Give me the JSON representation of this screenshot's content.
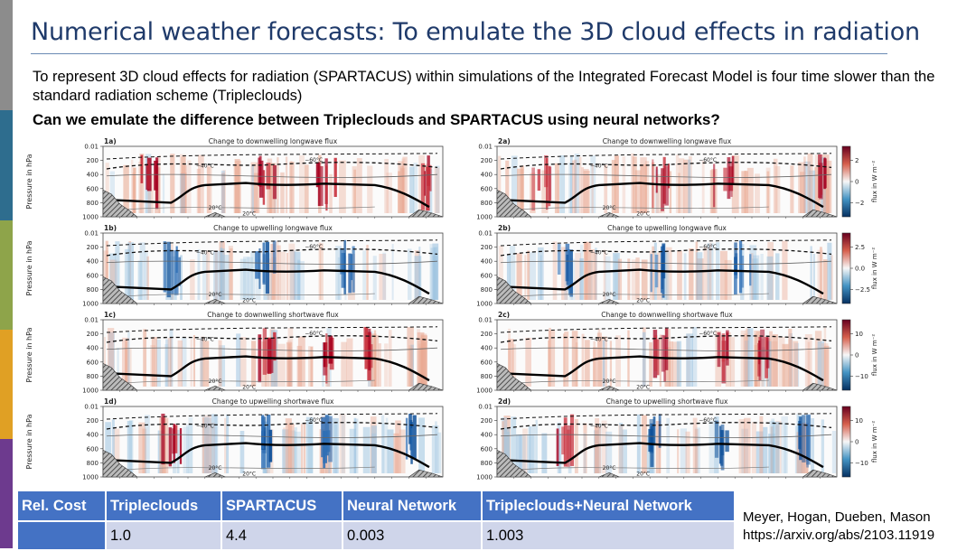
{
  "slide": {
    "title": "Numerical weather forecasts: To emulate the 3D cloud effects in radiation",
    "intro": "To represent 3D cloud effects for radiation (SPARTACUS) within simulations of the Integrated Forecast Model is four time slower than the standard radiation scheme (Tripleclouds)",
    "question": "Can we emulate the difference between Tripleclouds and SPARTACUS using neural networks?"
  },
  "figure": {
    "ylabel": "Pressure in hPa",
    "yticks": [
      "0.01",
      "200",
      "400",
      "600",
      "800",
      "1000"
    ],
    "isotherms": [
      "−60°C",
      "−40°C",
      "20°C",
      "20°C"
    ],
    "rows": [
      {
        "left_label": "1a)",
        "right_label": "2a)",
        "title": "Change to downwelling longwave flux",
        "cbar_ticks": [
          "2",
          "0",
          "−2"
        ],
        "cbar_label": "flux in W m⁻²"
      },
      {
        "left_label": "1b)",
        "right_label": "2b)",
        "title": "Change to upwelling longwave flux",
        "cbar_ticks": [
          "2.5",
          "0.0",
          "−2.5"
        ],
        "cbar_label": "flux in W m⁻²"
      },
      {
        "left_label": "1c)",
        "right_label": "2c)",
        "title": "Change to downwelling shortwave flux",
        "cbar_ticks": [
          "10",
          "0",
          "−10"
        ],
        "cbar_label": "flux in W m⁻²"
      },
      {
        "left_label": "1d)",
        "right_label": "2d)",
        "title": "Change to upwelling shortwave flux",
        "cbar_ticks": [
          "10",
          "0",
          "−10"
        ],
        "cbar_label": "flux in W m⁻²"
      }
    ]
  },
  "cost_table": {
    "headers": [
      "Rel. Cost",
      "Tripleclouds",
      "SPARTACUS",
      "Neural Network",
      "Tripleclouds+Neural Network"
    ],
    "row": [
      "",
      "1.0",
      "4.4",
      "0.003",
      "1.003"
    ]
  },
  "credit": {
    "authors": "Meyer, Hogan, Dueben, Mason",
    "link": "https://arxiv.org/abs/2103.11919"
  },
  "colors": {
    "title": "#1f3a6a",
    "table_header": "#4472c4",
    "table_cell": "#cfd5ea",
    "warm": "#a5001f",
    "cool": "#0d4f99",
    "sidebar": [
      "#8c8c8c",
      "#2e6d8e",
      "#8ea44a",
      "#e0a024",
      "#6d3a8e"
    ]
  }
}
